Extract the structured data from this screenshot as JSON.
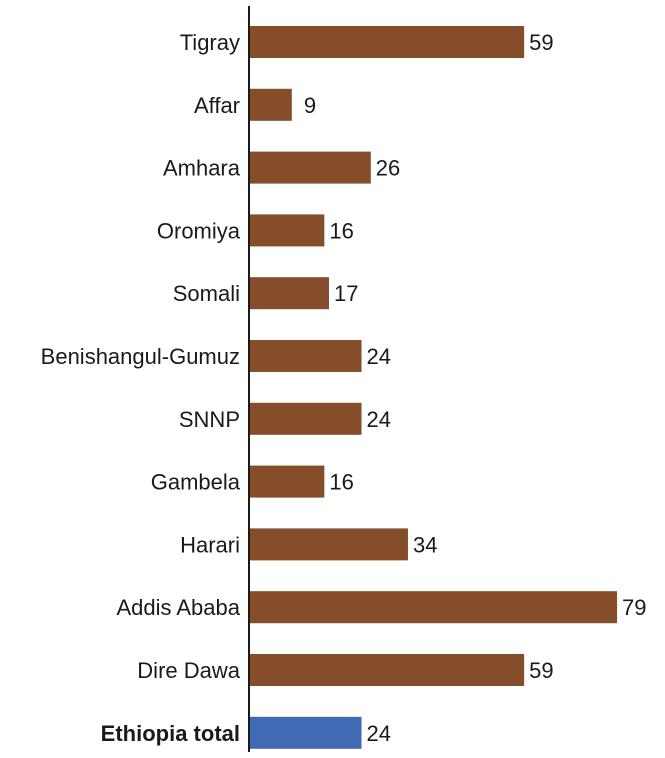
{
  "chart_data": {
    "type": "bar",
    "orientation": "horizontal",
    "categories": [
      "Tigray",
      "Affar",
      "Amhara",
      "Oromiya",
      "Somali",
      "Benishangul-Gumuz",
      "SNNP",
      "Gambela",
      "Harari",
      "Addis Ababa",
      "Dire Dawa",
      "Ethiopia total"
    ],
    "values": [
      59,
      9,
      26,
      16,
      17,
      24,
      24,
      16,
      34,
      79,
      59,
      24
    ],
    "highlight_category": "Ethiopia total",
    "xlim": [
      0,
      82
    ],
    "grid": false,
    "legend": "none",
    "colors": {
      "bar": "#864d2b",
      "highlight_bar": "#4169b4",
      "axis": "#1a1a1a",
      "text": "#1a1a1a"
    }
  }
}
